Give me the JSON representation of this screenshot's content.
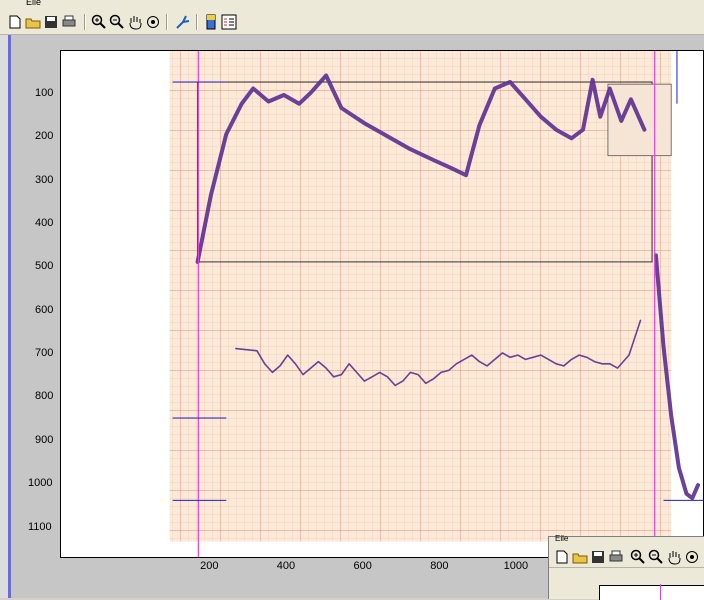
{
  "window": {
    "menu_label": "Eile"
  },
  "toolbar": {
    "buttons": [
      "new-file",
      "open-folder",
      "save",
      "print",
      "zoom-in",
      "zoom-out",
      "pan",
      "rotate-3d",
      "data-cursor",
      "colorbar",
      "legend"
    ]
  },
  "axes": {
    "xticks": [
      "200",
      "400",
      "600",
      "800",
      "1000",
      "1200"
    ],
    "yticks": [
      "100",
      "200",
      "300",
      "400",
      "500",
      "600",
      "700",
      "800",
      "900",
      "1000",
      "1100"
    ]
  },
  "chart_data": {
    "type": "line",
    "x_axis_ticks": [
      200,
      400,
      600,
      800,
      1000,
      1200
    ],
    "y_axis_ticks": [
      100,
      200,
      300,
      400,
      500,
      600,
      700,
      800,
      900,
      1000,
      1100
    ],
    "ylim": [
      1170,
      40
    ],
    "xlim": [
      55,
      1400
    ],
    "y_reversed": true,
    "grid": false,
    "background": "scanned seismograph / recording chart paper with orange grid",
    "series": [
      {
        "color": "#5a2d91",
        "x": [
          165,
          200,
          240,
          280,
          310,
          350,
          390,
          430,
          460,
          500,
          540,
          600,
          660,
          720,
          780,
          830,
          865,
          900,
          940,
          980,
          1020,
          1060,
          1100,
          1140,
          1170,
          1195,
          1215,
          1240,
          1270,
          1295,
          1330
        ],
        "y": [
          485,
          330,
          190,
          120,
          85,
          115,
          100,
          120,
          95,
          55,
          130,
          165,
          195,
          225,
          250,
          270,
          285,
          170,
          85,
          70,
          110,
          150,
          180,
          200,
          180,
          65,
          150,
          85,
          160,
          110,
          180
        ]
      },
      {
        "color": "#5a2d91",
        "x": [
          1360,
          1380,
          1400,
          1420,
          1440,
          1455,
          1470
        ],
        "y": [
          470,
          680,
          840,
          960,
          1020,
          1030,
          1000
        ]
      },
      {
        "color": "#5a2d91",
        "x": [
          265,
          320,
          340,
          360,
          380,
          400,
          420,
          440,
          460,
          480,
          500,
          520,
          540,
          560,
          580,
          600,
          620,
          640,
          660,
          680,
          700,
          720,
          740,
          760,
          780,
          800,
          820,
          840,
          860,
          880,
          900,
          920,
          940,
          960,
          980,
          1000,
          1020,
          1040,
          1060,
          1080,
          1100,
          1120,
          1140,
          1160,
          1180,
          1200,
          1220,
          1240,
          1260,
          1290,
          1320
        ],
        "y": [
          685,
          690,
          720,
          740,
          725,
          700,
          720,
          745,
          730,
          715,
          730,
          750,
          745,
          720,
          740,
          760,
          750,
          740,
          750,
          770,
          760,
          740,
          745,
          765,
          755,
          740,
          735,
          720,
          710,
          700,
          715,
          725,
          710,
          695,
          705,
          700,
          710,
          705,
          700,
          710,
          720,
          725,
          710,
          700,
          705,
          715,
          720,
          720,
          730,
          700,
          620
        ]
      }
    ]
  }
}
